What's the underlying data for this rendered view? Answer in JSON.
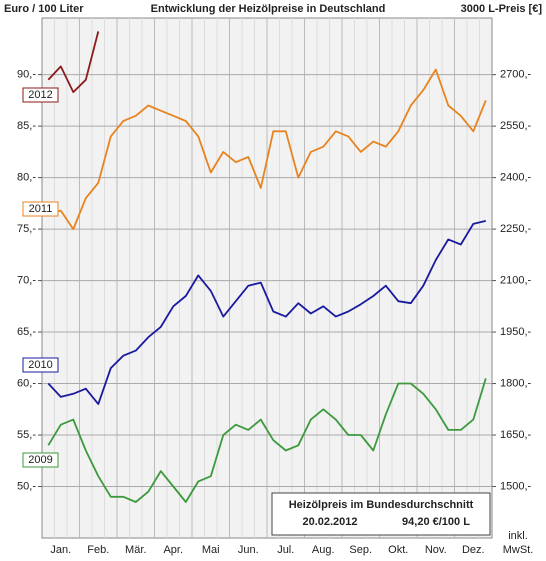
{
  "chart_data": {
    "type": "line",
    "title": "Entwicklung der Heizölpreise in Deutschland",
    "y_label": "Euro / 100 Liter",
    "y2_label": "3000 L-Preis [€]",
    "note_lines": [
      "inkl.",
      "MwSt."
    ],
    "info_box": {
      "title": "Heizölpreis im Bundesdurchschnitt",
      "date": "20.02.2012",
      "price": "94,20 €/100 L"
    },
    "categories": [
      null,
      "Jan.",
      null,
      null,
      "Feb.",
      null,
      null,
      "Mär.",
      null,
      null,
      "Apr.",
      null,
      null,
      "Mai",
      null,
      null,
      "Jun.",
      null,
      null,
      "Jul.",
      null,
      null,
      "Aug.",
      null,
      null,
      "Sep.",
      null,
      null,
      "Okt.",
      null,
      null,
      "Nov.",
      null,
      null,
      "Dez.",
      null
    ],
    "series": [
      {
        "name": "2012",
        "color": "#8b1a1a",
        "values": [
          89.5,
          90.8,
          88.3,
          89.5,
          94.2,
          null,
          null,
          null,
          null,
          null,
          null,
          null,
          null,
          null,
          null,
          null,
          null,
          null,
          null,
          null,
          null,
          null,
          null,
          null,
          null,
          null,
          null,
          null,
          null,
          null,
          null,
          null,
          null,
          null,
          null,
          null
        ]
      },
      {
        "name": "2011",
        "color": "#e8831f",
        "values": [
          76.5,
          76.8,
          75,
          78,
          79.5,
          84,
          85.5,
          86,
          87,
          86.5,
          86,
          85.5,
          84,
          80.5,
          82.5,
          81.5,
          82,
          79,
          84.5,
          84.5,
          80,
          82.5,
          83,
          84.5,
          84,
          82.5,
          83.5,
          83,
          84.5,
          87,
          88.5,
          90.5,
          87,
          86,
          84.5,
          87.5
        ]
      },
      {
        "name": "2010",
        "color": "#1a1aa0",
        "values": [
          60,
          58.7,
          59,
          59.5,
          58,
          61.5,
          62.7,
          63.2,
          64.5,
          65.5,
          67.5,
          68.5,
          70.5,
          69,
          66.5,
          68,
          69.5,
          69.8,
          67,
          66.5,
          67.8,
          66.8,
          67.5,
          66.5,
          67,
          67.7,
          68.5,
          69.5,
          68,
          67.8,
          69.5,
          72,
          74,
          73.5,
          75.5,
          75.8
        ]
      },
      {
        "name": "2009",
        "color": "#3c9a3c",
        "values": [
          54,
          56,
          56.5,
          53.5,
          51,
          49,
          49,
          48.5,
          49.5,
          51.5,
          50,
          48.5,
          50.5,
          51,
          55,
          56,
          55.5,
          56.5,
          54.5,
          53.5,
          54,
          56.5,
          57.5,
          56.5,
          55,
          55,
          53.5,
          57,
          60,
          60,
          59,
          57.5,
          55.5,
          55.5,
          56.5,
          60.5
        ]
      }
    ],
    "ylim": [
      45,
      95.5
    ],
    "yticks": [
      {
        "value": 50,
        "label": "50,-"
      },
      {
        "value": 55,
        "label": "55,-"
      },
      {
        "value": 60,
        "label": "60,-"
      },
      {
        "value": 65,
        "label": "65,-"
      },
      {
        "value": 70,
        "label": "70,-"
      },
      {
        "value": 75,
        "label": "75,-"
      },
      {
        "value": 80,
        "label": "80,-"
      },
      {
        "value": 85,
        "label": "85,-"
      },
      {
        "value": 90,
        "label": "90,-"
      }
    ],
    "y2lim": [
      1350,
      2865
    ],
    "y2ticks": [
      {
        "value": 1500,
        "label": "1500,-"
      },
      {
        "value": 1650,
        "label": "1650,-"
      },
      {
        "value": 1800,
        "label": "1800,-"
      },
      {
        "value": 1950,
        "label": "1950,-"
      },
      {
        "value": 2100,
        "label": "2100,-"
      },
      {
        "value": 2250,
        "label": "2250,-"
      },
      {
        "value": 2400,
        "label": "2400,-"
      },
      {
        "value": 2550,
        "label": "2550,-"
      },
      {
        "value": 2700,
        "label": "2700,-"
      }
    ],
    "grid": true
  }
}
